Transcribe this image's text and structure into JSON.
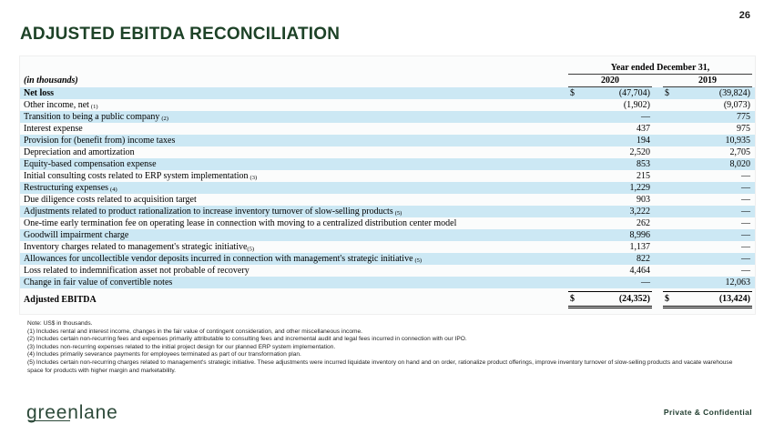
{
  "page": {
    "number": "26",
    "footer_right": "Private & Confidential",
    "logo_text": "greenlane"
  },
  "title": "ADJUSTED EBITDA RECONCILIATION",
  "colors": {
    "accent_green": "#1d4227",
    "row_blue": "#cce8f4",
    "logo_green": "#2d4a3a"
  },
  "table": {
    "units_label": "(in thousands)",
    "period_header": "Year ended December 31,",
    "columns": [
      "2020",
      "2019"
    ],
    "rows": [
      {
        "label": "Net loss",
        "ref": "",
        "ref_space": false,
        "v2020": "(47,704)",
        "v2019": "(39,824)",
        "dollar": true,
        "shade": true,
        "bold": true
      },
      {
        "label": "Other income, net",
        "ref": "(1)",
        "ref_space": true,
        "v2020": "(1,902)",
        "v2019": "(9,073)",
        "dollar": false,
        "shade": false,
        "bold": false
      },
      {
        "label": "Transition to being a public company",
        "ref": "(2)",
        "ref_space": true,
        "v2020": "—",
        "v2019": "775",
        "dollar": false,
        "shade": true,
        "bold": false
      },
      {
        "label": "Interest expense",
        "ref": "",
        "ref_space": false,
        "v2020": "437",
        "v2019": "975",
        "dollar": false,
        "shade": false,
        "bold": false
      },
      {
        "label": "Provision for (benefit from) income taxes",
        "ref": "",
        "ref_space": false,
        "v2020": "194",
        "v2019": "10,935",
        "dollar": false,
        "shade": true,
        "bold": false
      },
      {
        "label": "Depreciation and amortization",
        "ref": "",
        "ref_space": false,
        "v2020": "2,520",
        "v2019": "2,705",
        "dollar": false,
        "shade": false,
        "bold": false
      },
      {
        "label": "Equity-based compensation expense",
        "ref": "",
        "ref_space": false,
        "v2020": "853",
        "v2019": "8,020",
        "dollar": false,
        "shade": true,
        "bold": false
      },
      {
        "label": "Initial consulting costs related to ERP system implementation",
        "ref": "(3)",
        "ref_space": true,
        "v2020": "215",
        "v2019": "—",
        "dollar": false,
        "shade": false,
        "bold": false
      },
      {
        "label": "Restructuring expenses",
        "ref": "(4)",
        "ref_space": true,
        "v2020": "1,229",
        "v2019": "—",
        "dollar": false,
        "shade": true,
        "bold": false
      },
      {
        "label": "Due diligence costs related to acquisition target",
        "ref": "",
        "ref_space": false,
        "v2020": "903",
        "v2019": "—",
        "dollar": false,
        "shade": false,
        "bold": false
      },
      {
        "label": "Adjustments related to product rationalization to increase inventory turnover of slow-selling products",
        "ref": "(5)",
        "ref_space": true,
        "v2020": "3,222",
        "v2019": "—",
        "dollar": false,
        "shade": true,
        "bold": false
      },
      {
        "label": "One-time early termination fee on operating lease in connection with moving to a centralized distribution center model",
        "ref": "",
        "ref_space": false,
        "v2020": "262",
        "v2019": "—",
        "dollar": false,
        "shade": false,
        "bold": false
      },
      {
        "label": "Goodwill impairment charge",
        "ref": "",
        "ref_space": false,
        "v2020": "8,996",
        "v2019": "—",
        "dollar": false,
        "shade": true,
        "bold": false
      },
      {
        "label": "Inventory charges related to management's strategic initiative",
        "ref": "(5)",
        "ref_space": false,
        "v2020": "1,137",
        "v2019": "—",
        "dollar": false,
        "shade": false,
        "bold": false
      },
      {
        "label": "Allowances for uncollectible vendor deposits incurred in connection with management's strategic initiative",
        "ref": "(5)",
        "ref_space": true,
        "v2020": "822",
        "v2019": "—",
        "dollar": false,
        "shade": true,
        "bold": false
      },
      {
        "label": "Loss related to indemnification asset not probable of recovery",
        "ref": "",
        "ref_space": false,
        "v2020": "4,464",
        "v2019": "—",
        "dollar": false,
        "shade": false,
        "bold": false
      },
      {
        "label": "Change in fair value of convertible notes",
        "ref": "",
        "ref_space": false,
        "v2020": "—",
        "v2019": "12,063",
        "dollar": false,
        "shade": true,
        "bold": false
      }
    ],
    "total_row": {
      "label": "Adjusted EBITDA",
      "v2020": "(24,352)",
      "v2019": "(13,424)",
      "dollar": true
    }
  },
  "footnotes": [
    "Note: US$ in thousands.",
    "(1) Includes rental and interest income, changes in the fair value of contingent consideration, and other miscellaneous income.",
    "(2) Includes certain non-recurring fees and expenses primarily attributable to consulting fees and incremental audit and legal fees incurred in connection with our IPO.",
    "(3) Includes non-recurring expenses related to the initial project design for our planned ERP system implementation.",
    "(4) Includes primarily severance payments for employees terminated as part of our transformation plan.",
    "(5) Includes certain non-recurring charges related to management's strategic initiative. These adjustments were incurred liquidate inventory on hand and on order, rationalize product offerings, improve inventory turnover of slow-selling products and vacate warehouse space for products with higher margin and marketability."
  ]
}
